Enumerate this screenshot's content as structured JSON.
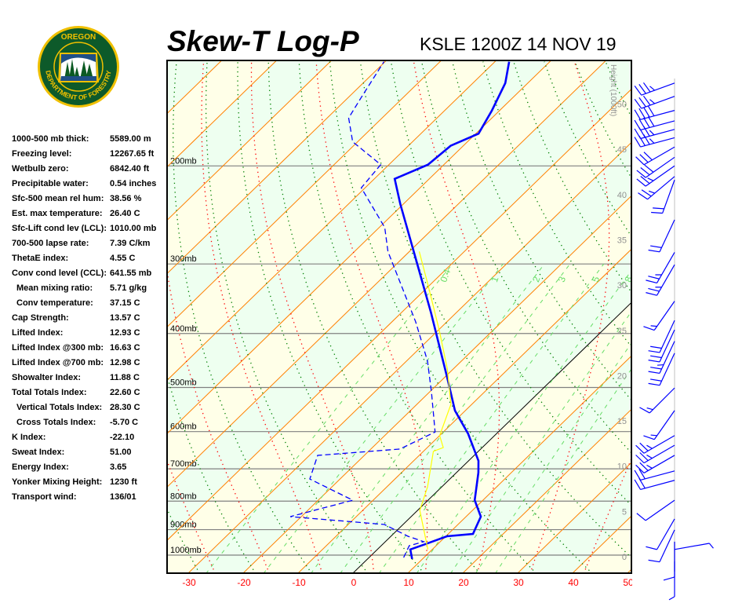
{
  "header": {
    "title": "Skew-T Log-P",
    "station": "KSLE 1200Z 14 NOV 19"
  },
  "logo": {
    "top_text": "OREGON",
    "bottom_text": "DEPARTMENT OF FORESTRY"
  },
  "stats": [
    {
      "label": "1000-500 mb thick:",
      "value": "5589.00 m"
    },
    {
      "label": "Freezing level:",
      "value": "12267.65 ft"
    },
    {
      "label": "Wetbulb zero:",
      "value": "6842.40 ft"
    },
    {
      "label": "Precipitable water:",
      "value": "0.54 inches"
    },
    {
      "label": "Sfc-500 mean rel hum:",
      "value": "38.56 %"
    },
    {
      "label": "Est. max temperature:",
      "value": "26.40 C"
    },
    {
      "label": "Sfc-Lift cond lev (LCL):",
      "value": "1010.00 mb"
    },
    {
      "label": "700-500 lapse rate:",
      "value": "7.39 C/km"
    },
    {
      "label": "ThetaE index:",
      "value": "4.55 C"
    },
    {
      "label": "Conv cond level (CCL):",
      "value": "641.55 mb"
    },
    {
      "label": "Mean mixing ratio:",
      "value": "5.71 g/kg",
      "indent": true
    },
    {
      "label": "Conv temperature:",
      "value": "37.15 C",
      "indent": true
    },
    {
      "label": "Cap Strength:",
      "value": "13.57 C"
    },
    {
      "label": "Lifted Index:",
      "value": "12.93 C"
    },
    {
      "label": "Lifted Index @300 mb:",
      "value": "16.63 C"
    },
    {
      "label": "Lifted Index @700 mb:",
      "value": "12.98 C"
    },
    {
      "label": "Showalter Index:",
      "value": "11.88 C"
    },
    {
      "label": "Total Totals Index:",
      "value": "22.60 C"
    },
    {
      "label": "Vertical Totals Index:",
      "value": "28.30 C",
      "indent": true
    },
    {
      "label": "Cross Totals Index:",
      "value": "-5.70 C",
      "indent": true
    },
    {
      "label": "K Index:",
      "value": "-22.10"
    },
    {
      "label": "Sweat Index:",
      "value": "51.00"
    },
    {
      "label": "Energy Index:",
      "value": "3.65"
    },
    {
      "label": "Yonker Mixing Height:",
      "value": "1230 ft"
    },
    {
      "label": "Transport wind:",
      "value": "136/01"
    }
  ],
  "chart_data": {
    "type": "line",
    "subtype": "skew-t log-p",
    "x_axis": {
      "label": "",
      "unit": "C",
      "ticks": [
        -30,
        -20,
        -10,
        0,
        10,
        20,
        30,
        40,
        50
      ],
      "tick_color": "#ff0000"
    },
    "y_axis": {
      "scale": "log",
      "unit": "mb",
      "range": [
        1077,
        129
      ],
      "levels": [
        200,
        300,
        400,
        500,
        600,
        700,
        800,
        900,
        1000
      ],
      "level_labels": [
        "200mb",
        "300mb",
        "400mb",
        "500mb",
        "600mb",
        "700mb",
        "800mb",
        "900mb",
        "1000mb"
      ]
    },
    "height_axis": {
      "label": "Height (1000ft)",
      "ticks": [
        0,
        5,
        10,
        15,
        20,
        25,
        30,
        35,
        40,
        45,
        50
      ]
    },
    "mixing_ratio_labels": [
      "0.4",
      "1",
      "2",
      "3",
      "5",
      "8"
    ],
    "mixing_ratios_gkg": [
      0.4,
      1,
      2,
      3,
      5,
      8,
      12,
      16,
      20
    ],
    "colors": {
      "temperature": "#0000ff",
      "dewpoint": "#0000ff",
      "parcel": "#ffff00",
      "isotherm": "#ff8000",
      "zero_isotherm": "#000000",
      "dry_adiabat": "#008000",
      "moist_adiabat": "#ff0000",
      "mixing_ratio": "#66dd66",
      "band_a": "#ffffe8",
      "band_b": "#eefff0",
      "wind": "#0000ff"
    },
    "series": [
      {
        "name": "temperature",
        "style": "solid",
        "p": [
          1016,
          977,
          955,
          925,
          916,
          853,
          797,
          711,
          677,
          605,
          550,
          479,
          367,
          294,
          234,
          211,
          199,
          184,
          175,
          159,
          142,
          130
        ],
        "T": [
          8.1,
          6.0,
          7.8,
          10.2,
          14.5,
          12.7,
          8.5,
          4.0,
          1.8,
          -5.2,
          -11.9,
          -19.6,
          -34.6,
          -47.4,
          -60.6,
          -66.3,
          -62.9,
          -62.3,
          -59.5,
          -61.4,
          -64.1,
          -67.4
        ]
      },
      {
        "name": "dewpoint",
        "style": "dashed",
        "p": [
          1010,
          962,
          946,
          925,
          881,
          853,
          797,
          730,
          662,
          645,
          601,
          510,
          448,
          381,
          285,
          258,
          219,
          199,
          181,
          164,
          151,
          130
        ],
        "T": [
          6.3,
          5.1,
          7.0,
          3.1,
          -3.4,
          -22.0,
          -13.7,
          -25.5,
          -28.5,
          -14.7,
          -11.5,
          -19.6,
          -26.2,
          -35.7,
          -53.9,
          -59.0,
          -70.7,
          -71.5,
          -80.9,
          -86.1,
          -87.6,
          -90.2
        ]
      },
      {
        "name": "parcel",
        "style": "solid",
        "p": [
          977,
          831,
          754,
          651,
          641,
          610,
          536,
          463,
          394,
          324,
          285
        ],
        "T": [
          9.2,
          0.4,
          -2.6,
          -8.2,
          -7.1,
          -10.0,
          -13.8,
          -21.1,
          -29.9,
          -40.9,
          -48.2
        ]
      }
    ],
    "winds": [
      {
        "p": 142,
        "dir": 250,
        "kt": 35
      },
      {
        "p": 150,
        "dir": 250,
        "kt": 35
      },
      {
        "p": 159,
        "dir": 255,
        "kt": 40
      },
      {
        "p": 166,
        "dir": 255,
        "kt": 40
      },
      {
        "p": 172,
        "dir": 255,
        "kt": 35
      },
      {
        "p": 178,
        "dir": 255,
        "kt": 35
      },
      {
        "p": 185,
        "dir": 240,
        "kt": 30
      },
      {
        "p": 193,
        "dir": 235,
        "kt": 30
      },
      {
        "p": 200,
        "dir": 235,
        "kt": 25
      },
      {
        "p": 209,
        "dir": 230,
        "kt": 25
      },
      {
        "p": 212,
        "dir": 200,
        "kt": 20
      },
      {
        "p": 250,
        "dir": 205,
        "kt": 20
      },
      {
        "p": 286,
        "dir": 210,
        "kt": 25
      },
      {
        "p": 301,
        "dir": 210,
        "kt": 25
      },
      {
        "p": 350,
        "dir": 215,
        "kt": 15
      },
      {
        "p": 379,
        "dir": 205,
        "kt": 20
      },
      {
        "p": 394,
        "dir": 205,
        "kt": 20
      },
      {
        "p": 413,
        "dir": 205,
        "kt": 25
      },
      {
        "p": 434,
        "dir": 205,
        "kt": 20
      },
      {
        "p": 501,
        "dir": 225,
        "kt": 15
      },
      {
        "p": 550,
        "dir": 215,
        "kt": 15
      },
      {
        "p": 610,
        "dir": 240,
        "kt": 25
      },
      {
        "p": 635,
        "dir": 240,
        "kt": 25
      },
      {
        "p": 662,
        "dir": 240,
        "kt": 25
      },
      {
        "p": 706,
        "dir": 255,
        "kt": 20
      },
      {
        "p": 734,
        "dir": 255,
        "kt": 20
      },
      {
        "p": 797,
        "dir": 235,
        "kt": 10
      },
      {
        "p": 861,
        "dir": 210,
        "kt": 10
      },
      {
        "p": 901,
        "dir": 205,
        "kt": 10
      },
      {
        "p": 946,
        "dir": 180,
        "kt": 10
      },
      {
        "p": 977,
        "dir": 80,
        "kt": 5
      },
      {
        "p": 1026,
        "dir": 180,
        "kt": 5
      }
    ]
  }
}
